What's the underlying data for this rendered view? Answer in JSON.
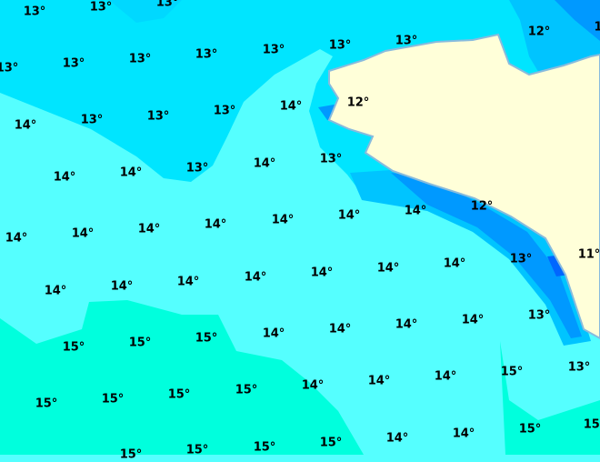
{
  "map": {
    "colors": {
      "t11": "#0066ff",
      "t12_dark": "#0099ff",
      "t12": "#00c4ff",
      "t13": "#00e5ff",
      "t14": "#55ffff",
      "t15": "#00ffdd",
      "land": "#ffffd9",
      "coast": "#88bbdd"
    },
    "labels": [
      "13°",
      "13°",
      "13°",
      "13°",
      "13°",
      "13°",
      "13°",
      "13°",
      "13°",
      "13°",
      "12°",
      "1",
      "14°",
      "13°",
      "13°",
      "13°",
      "14°",
      "12°",
      "14°",
      "14°",
      "13°",
      "14°",
      "13°",
      "14°",
      "14°",
      "14°",
      "14°",
      "14°",
      "14°",
      "14°",
      "12°",
      "14°",
      "14°",
      "14°",
      "14°",
      "14°",
      "14°",
      "14°",
      "13°",
      "11°",
      "15°",
      "15°",
      "15°",
      "14°",
      "14°",
      "14°",
      "14°",
      "13°",
      "15°",
      "15°",
      "15°",
      "15°",
      "14°",
      "14°",
      "14°",
      "15°",
      "13°",
      "14°",
      "14°",
      "15°",
      "15°",
      "15°",
      "15°",
      "15°",
      "15°"
    ]
  }
}
